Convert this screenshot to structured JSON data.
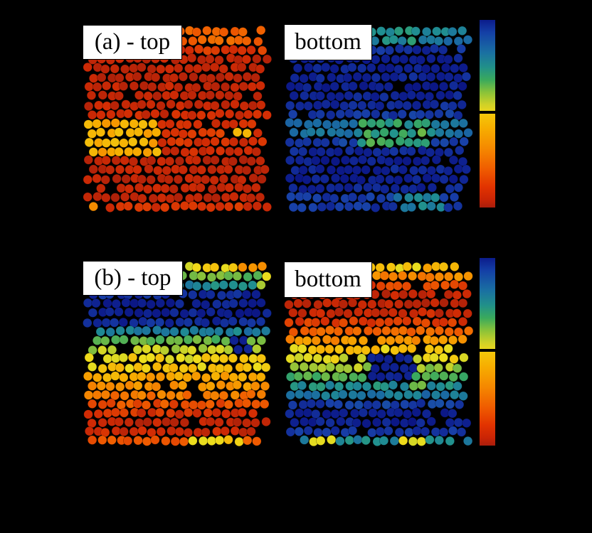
{
  "figure": {
    "background_color": "#000000",
    "label_box": {
      "bg": "#ffffff",
      "border": "#000000",
      "text_color": "#000000"
    },
    "labels": {
      "a_top": "(a) - top",
      "a_bottom": "bottom",
      "b_top": "(b) - top",
      "b_bottom": "bottom"
    }
  },
  "chart_data": {
    "type": "scatter",
    "layout": "2x2 panels of hex-packed colored dots, shared split colorbar per row",
    "axes_visible": false,
    "value_scale": "0 = dark blue (colorbar top), 1 = dark red (colorbar bottom)",
    "colormap": {
      "stops": [
        [
          0.0,
          "#0a1280"
        ],
        [
          0.06,
          "#0e208f"
        ],
        [
          0.13,
          "#1840a8"
        ],
        [
          0.22,
          "#1a6ba2"
        ],
        [
          0.3,
          "#209090"
        ],
        [
          0.38,
          "#38a860"
        ],
        [
          0.46,
          "#80be3e"
        ],
        [
          0.52,
          "#d8d824"
        ],
        [
          0.555,
          "#eede1c"
        ],
        [
          0.57,
          "#f3c60e"
        ],
        [
          0.63,
          "#f7ac00"
        ],
        [
          0.7,
          "#f58700"
        ],
        [
          0.78,
          "#ef5a00"
        ],
        [
          0.86,
          "#d42c04"
        ],
        [
          0.93,
          "#b42208"
        ],
        [
          1.0,
          "#921c0c"
        ]
      ]
    },
    "colorbars": [
      {
        "id": "a",
        "orientation": "vertical",
        "divider_at_fraction": 0.5,
        "top_gradient": [
          [
            "0%",
            "#0c1c8c"
          ],
          [
            "14%",
            "#1440a6"
          ],
          [
            "36%",
            "#1a70a2"
          ],
          [
            "52%",
            "#219089"
          ],
          [
            "66%",
            "#3aaa5c"
          ],
          [
            "80%",
            "#8cc338"
          ],
          [
            "93%",
            "#cfd128"
          ],
          [
            "100%",
            "#e8d51e"
          ]
        ],
        "bottom_gradient": [
          [
            "0%",
            "#f4c70a"
          ],
          [
            "16%",
            "#f7ad00"
          ],
          [
            "38%",
            "#f58700"
          ],
          [
            "60%",
            "#ef5a00"
          ],
          [
            "78%",
            "#e23300"
          ],
          [
            "92%",
            "#c92405"
          ],
          [
            "100%",
            "#aa1e0c"
          ]
        ]
      },
      {
        "id": "b",
        "orientation": "vertical",
        "divider_at_fraction": 0.5,
        "top_gradient": [
          [
            "0%",
            "#0c1c8c"
          ],
          [
            "14%",
            "#1440a6"
          ],
          [
            "36%",
            "#1a70a2"
          ],
          [
            "52%",
            "#219089"
          ],
          [
            "66%",
            "#3aaa5c"
          ],
          [
            "80%",
            "#8cc338"
          ],
          [
            "93%",
            "#cfd128"
          ],
          [
            "100%",
            "#e8d51e"
          ]
        ],
        "bottom_gradient": [
          [
            "0%",
            "#f4c70a"
          ],
          [
            "16%",
            "#f7ad00"
          ],
          [
            "38%",
            "#f58700"
          ],
          [
            "60%",
            "#ef5a00"
          ],
          [
            "78%",
            "#e23300"
          ],
          [
            "92%",
            "#c92405"
          ],
          [
            "100%",
            "#aa1e0c"
          ]
        ]
      }
    ],
    "panels": [
      {
        "id": "a_top",
        "label": "(a) - top",
        "grid": {
          "rows": 20,
          "cols": 20
        },
        "seed": 7,
        "noise": 0.035,
        "row_values": [
          0.76,
          0.76,
          0.84,
          0.9,
          0.9,
          0.91,
          0.9,
          0.91,
          0.89,
          0.88,
          0.86,
          0.85,
          0.86,
          0.88,
          0.91,
          0.9,
          0.91,
          0.9,
          0.91,
          0.86
        ],
        "anomalies": [
          {
            "rows": [
              10,
              13
            ],
            "cols": [
              0,
              7
            ],
            "value": 0.63,
            "noise": 0.05
          },
          {
            "rows": [
              11,
              11
            ],
            "cols": [
              16,
              17
            ],
            "value": 0.62,
            "noise": 0.02
          },
          {
            "rows": [
              19,
              19
            ],
            "cols": [
              0,
              1
            ],
            "value": 0.67,
            "noise": 0.03
          }
        ]
      },
      {
        "id": "a_bottom",
        "label": "bottom",
        "grid": {
          "rows": 20,
          "cols": 20
        },
        "seed": 13,
        "noise": 0.035,
        "row_values": [
          0.27,
          0.24,
          0.09,
          0.06,
          0.05,
          0.07,
          0.05,
          0.06,
          0.08,
          0.11,
          0.22,
          0.24,
          0.12,
          0.07,
          0.05,
          0.06,
          0.05,
          0.07,
          0.11,
          0.1
        ],
        "anomalies": [
          {
            "rows": [
              0,
              1
            ],
            "cols": [
              5,
              13
            ],
            "value": 0.3,
            "noise": 0.06
          },
          {
            "rows": [
              10,
              12
            ],
            "cols": [
              8,
              15
            ],
            "value": 0.36,
            "noise": 0.08
          },
          {
            "rows": [
              18,
              19
            ],
            "cols": [
              12,
              16
            ],
            "value": 0.26,
            "noise": 0.05
          }
        ]
      },
      {
        "id": "b_top",
        "label": "(b) - top",
        "grid": {
          "rows": 20,
          "cols": 20
        },
        "seed": 21,
        "noise": 0.04,
        "row_values": [
          0.54,
          0.43,
          0.28,
          0.08,
          0.05,
          0.05,
          0.08,
          0.26,
          0.42,
          0.5,
          0.55,
          0.58,
          0.64,
          0.68,
          0.73,
          0.8,
          0.86,
          0.9,
          0.88,
          0.78
        ],
        "anomalies": [
          {
            "rows": [
              0,
              0
            ],
            "cols": [
              17,
              19
            ],
            "value": 0.66,
            "noise": 0.04
          },
          {
            "rows": [
              1,
              1
            ],
            "cols": [
              19,
              19
            ],
            "value": 0.57,
            "noise": 0.02
          },
          {
            "rows": [
              2,
              2
            ],
            "cols": [
              19,
              19
            ],
            "value": 0.48,
            "noise": 0.02
          },
          {
            "rows": [
              8,
              9
            ],
            "cols": [
              16,
              17
            ],
            "value": 0.07,
            "noise": 0.02
          },
          {
            "rows": [
              19,
              19
            ],
            "cols": [
              11,
              16
            ],
            "value": 0.57,
            "noise": 0.03
          }
        ]
      },
      {
        "id": "b_bottom",
        "label": "bottom",
        "grid": {
          "rows": 20,
          "cols": 20
        },
        "seed": 29,
        "noise": 0.04,
        "row_values": [
          0.57,
          0.7,
          0.83,
          0.9,
          0.91,
          0.89,
          0.84,
          0.76,
          0.68,
          0.58,
          0.53,
          0.48,
          0.4,
          0.3,
          0.24,
          0.12,
          0.06,
          0.05,
          0.1,
          0.28
        ],
        "anomalies": [
          {
            "rows": [
              0,
              0
            ],
            "cols": [
              15,
              19
            ],
            "value": 0.63,
            "noise": 0.05
          },
          {
            "rows": [
              10,
              12
            ],
            "cols": [
              9,
              13
            ],
            "value": 0.06,
            "noise": 0.02
          },
          {
            "rows": [
              13,
              13
            ],
            "cols": [
              13,
              14
            ],
            "value": 0.42,
            "noise": 0.03
          },
          {
            "rows": [
              19,
              19
            ],
            "cols": [
              2,
              4
            ],
            "value": 0.55,
            "noise": 0.03
          },
          {
            "rows": [
              19,
              19
            ],
            "cols": [
              12,
              14
            ],
            "value": 0.55,
            "noise": 0.04
          }
        ]
      }
    ]
  }
}
